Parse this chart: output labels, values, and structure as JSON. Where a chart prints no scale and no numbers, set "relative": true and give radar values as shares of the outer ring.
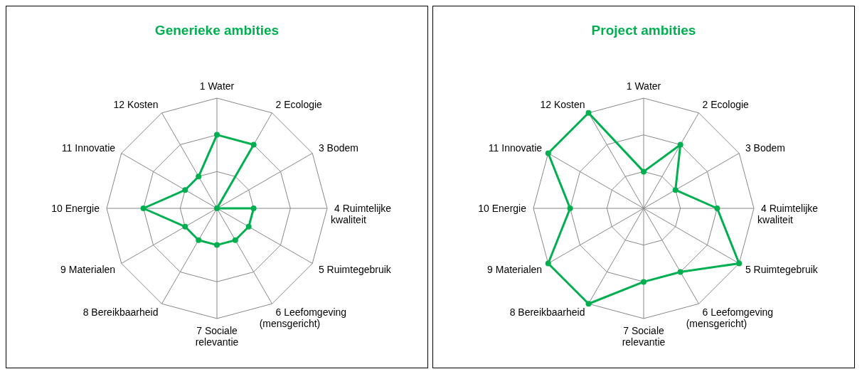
{
  "chart_data": [
    {
      "type": "radar",
      "title": "Generieke ambities",
      "relative": true,
      "marker": "circle",
      "categories": [
        "1 Water",
        "2 Ecologie",
        "3 Bodem",
        "4 Ruimtelijke\nkwaliteit",
        "5 Ruimtegebruik",
        "6 Leefomgeving\n(mensgericht)",
        "7 Sociale\nrelevantie",
        "8 Bereikbaarheid",
        "9 Materialen",
        "10 Energie",
        "11 Innovatie",
        "12 Kosten"
      ],
      "series": [
        {
          "color": "#00b050",
          "values": [
            0.667,
            0.667,
            0,
            0.333,
            0.333,
            0.333,
            0.333,
            0.333,
            0.333,
            0.667,
            0.333,
            0.333
          ]
        }
      ]
    },
    {
      "type": "radar",
      "title": "Project ambities",
      "relative": true,
      "marker": "circle",
      "categories": [
        "1 Water",
        "2 Ecologie",
        "3 Bodem",
        "4 Ruimtelijke\nkwaliteit",
        "5 Ruimtegebruik",
        "6 Leefomgeving\n(mensgericht)",
        "7 Sociale\nrelevantie",
        "8 Bereikbaarheid",
        "9 Materialen",
        "10 Energie",
        "11 Innovatie",
        "12 Kosten"
      ],
      "series": [
        {
          "color": "#00b050",
          "values": [
            0.333,
            0.667,
            0.333,
            0.667,
            1,
            0.667,
            0.667,
            1,
            1,
            0.667,
            1,
            1
          ]
        }
      ]
    }
  ]
}
